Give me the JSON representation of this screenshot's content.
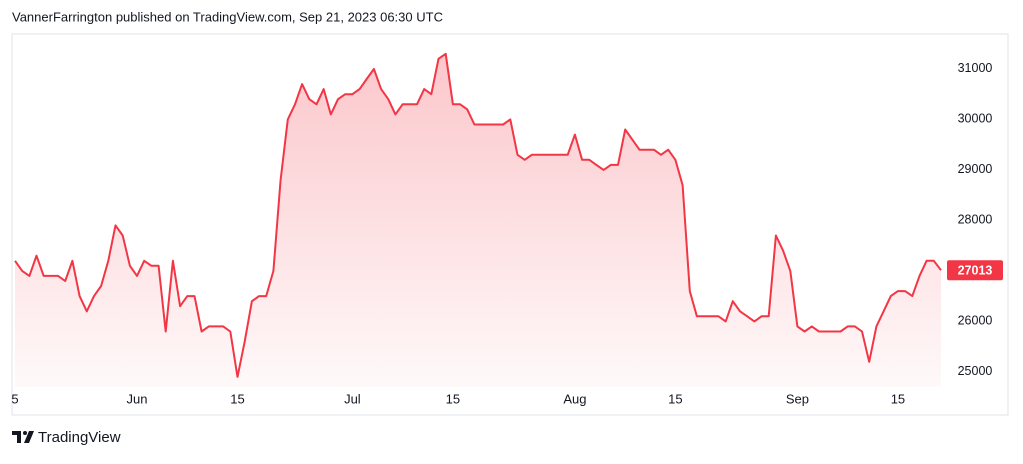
{
  "chart_data": {
    "type": "area",
    "title": "VannerFarrington published on TradingView.com, Sep 21, 2023 06:30 UTC",
    "color": "#f23645",
    "x": [
      "2023-05-15",
      "2023-05-16",
      "2023-05-17",
      "2023-05-18",
      "2023-05-19",
      "2023-05-20",
      "2023-05-21",
      "2023-05-22",
      "2023-05-23",
      "2023-05-24",
      "2023-05-25",
      "2023-05-26",
      "2023-05-27",
      "2023-05-28",
      "2023-05-29",
      "2023-05-30",
      "2023-05-31",
      "2023-06-01",
      "2023-06-02",
      "2023-06-03",
      "2023-06-04",
      "2023-06-05",
      "2023-06-06",
      "2023-06-07",
      "2023-06-08",
      "2023-06-09",
      "2023-06-10",
      "2023-06-11",
      "2023-06-12",
      "2023-06-13",
      "2023-06-14",
      "2023-06-15",
      "2023-06-16",
      "2023-06-17",
      "2023-06-18",
      "2023-06-19",
      "2023-06-20",
      "2023-06-21",
      "2023-06-22",
      "2023-06-23",
      "2023-06-24",
      "2023-06-25",
      "2023-06-26",
      "2023-06-27",
      "2023-06-28",
      "2023-06-29",
      "2023-06-30",
      "2023-07-01",
      "2023-07-02",
      "2023-07-03",
      "2023-07-04",
      "2023-07-05",
      "2023-07-06",
      "2023-07-07",
      "2023-07-08",
      "2023-07-09",
      "2023-07-10",
      "2023-07-11",
      "2023-07-12",
      "2023-07-13",
      "2023-07-14",
      "2023-07-15",
      "2023-07-16",
      "2023-07-17",
      "2023-07-18",
      "2023-07-19",
      "2023-07-20",
      "2023-07-21",
      "2023-07-22",
      "2023-07-23",
      "2023-07-24",
      "2023-07-25",
      "2023-07-26",
      "2023-07-27",
      "2023-07-28",
      "2023-07-29",
      "2023-07-30",
      "2023-07-31",
      "2023-08-01",
      "2023-08-02",
      "2023-08-03",
      "2023-08-04",
      "2023-08-05",
      "2023-08-06",
      "2023-08-07",
      "2023-08-08",
      "2023-08-09",
      "2023-08-10",
      "2023-08-11",
      "2023-08-12",
      "2023-08-13",
      "2023-08-14",
      "2023-08-15",
      "2023-08-16",
      "2023-08-17",
      "2023-08-18",
      "2023-08-19",
      "2023-08-20",
      "2023-08-21",
      "2023-08-22",
      "2023-08-23",
      "2023-08-24",
      "2023-08-25",
      "2023-08-26",
      "2023-08-27",
      "2023-08-28",
      "2023-08-29",
      "2023-08-30",
      "2023-08-31",
      "2023-09-01",
      "2023-09-02",
      "2023-09-03",
      "2023-09-04",
      "2023-09-05",
      "2023-09-06",
      "2023-09-07",
      "2023-09-08",
      "2023-09-09",
      "2023-09-10",
      "2023-09-11",
      "2023-09-12",
      "2023-09-13",
      "2023-09-14",
      "2023-09-15",
      "2023-09-16",
      "2023-09-17",
      "2023-09-18",
      "2023-09-19",
      "2023-09-20",
      "2023-09-21"
    ],
    "values": [
      27200,
      27000,
      26900,
      27300,
      26900,
      26900,
      26900,
      26800,
      27200,
      26500,
      26200,
      26500,
      26700,
      27200,
      27900,
      27700,
      27100,
      26900,
      27200,
      27100,
      27100,
      25800,
      27200,
      26300,
      26500,
      26500,
      25800,
      25900,
      25900,
      25900,
      25800,
      24900,
      25600,
      26400,
      26500,
      26500,
      27000,
      28800,
      30000,
      30300,
      30700,
      30400,
      30300,
      30600,
      30100,
      30400,
      30500,
      30500,
      30600,
      30800,
      31000,
      30600,
      30400,
      30100,
      30300,
      30300,
      30300,
      30600,
      30500,
      31200,
      31300,
      30300,
      30300,
      30200,
      29900,
      29900,
      29900,
      29900,
      29900,
      30000,
      29300,
      29200,
      29300,
      29300,
      29300,
      29300,
      29300,
      29300,
      29700,
      29200,
      29200,
      29100,
      29000,
      29100,
      29100,
      29800,
      29600,
      29400,
      29400,
      29400,
      29300,
      29400,
      29200,
      28700,
      26600,
      26100,
      26100,
      26100,
      26100,
      26000,
      26400,
      26200,
      26100,
      26000,
      26100,
      26100,
      27700,
      27400,
      27000,
      25900,
      25800,
      25900,
      25800,
      25800,
      25800,
      25800,
      25900,
      25900,
      25800,
      25200,
      25900,
      26200,
      26500,
      26600,
      26600,
      26500,
      26900,
      27200,
      27200,
      27013
    ],
    "xlim": [
      "2023-05-15",
      "2023-09-21"
    ],
    "ylim": [
      24700,
      31700
    ],
    "yticks": [
      25000,
      26000,
      27000,
      28000,
      29000,
      30000,
      31000
    ],
    "xticks": [
      {
        "value": "2023-05-15",
        "label": "5"
      },
      {
        "value": "2023-06-01",
        "label": "Jun"
      },
      {
        "value": "2023-06-15",
        "label": "15"
      },
      {
        "value": "2023-07-01",
        "label": "Jul"
      },
      {
        "value": "2023-07-15",
        "label": "15"
      },
      {
        "value": "2023-08-01",
        "label": "Aug"
      },
      {
        "value": "2023-08-15",
        "label": "15"
      },
      {
        "value": "2023-09-01",
        "label": "Sep"
      },
      {
        "value": "2023-09-15",
        "label": "15"
      }
    ]
  },
  "brand": "TradingView"
}
